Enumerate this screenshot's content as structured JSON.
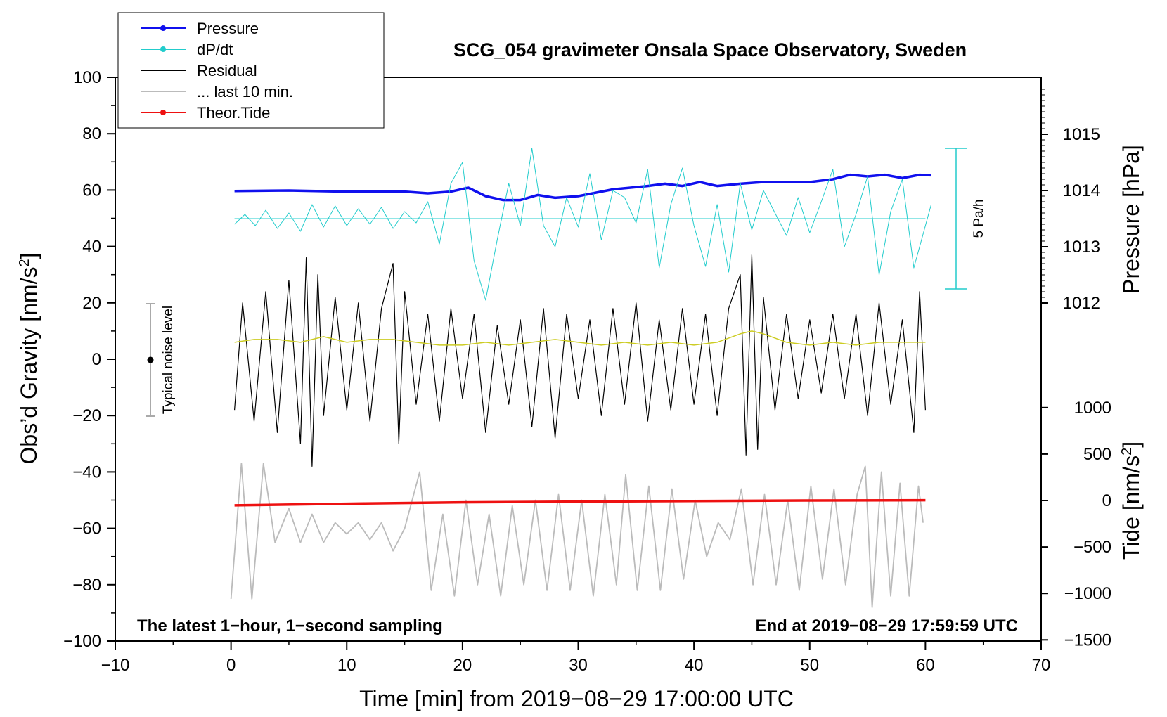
{
  "chart_data": {
    "type": "line",
    "title": "SCG_054 gravimeter Onsala Space Observatory, Sweden",
    "xlabel": "Time [min] from 2019−08−29 17:00:00 UTC",
    "ylabel_main": "Obs’d Gravity [nm/s",
    "ylabel_main_suffix": "]",
    "ylabel_pressure": "Pressure [hPa]",
    "ylabel_tide": "Tide [nm/s",
    "ylabel_tide_suffix": "]",
    "superscript": "2",
    "xlim": [
      -10,
      70
    ],
    "ylim": [
      -100,
      100
    ],
    "x_ticks": [
      "−10",
      "0",
      "10",
      "20",
      "30",
      "40",
      "50",
      "60",
      "70"
    ],
    "y_ticks": [
      "100",
      "80",
      "60",
      "40",
      "20",
      "0",
      "−20",
      "−40",
      "−60",
      "−80",
      "−100"
    ],
    "pressure_ticks": [
      "1015",
      "1014",
      "1013",
      "1012"
    ],
    "tide_ticks": [
      "1000",
      "500",
      "0",
      "−500",
      "−1000",
      "−1500"
    ],
    "annotation_left": "The latest 1−hour, 1−second sampling",
    "annotation_right": "End at 2019−08−29 17:59:59 UTC",
    "noise_label": "Typical noise level",
    "dpdt_scale_label": "5 Pa/h",
    "legend": {
      "placement": "top-left",
      "entries": [
        {
          "label": "Pressure",
          "color": "#1010ee",
          "marker": true
        },
        {
          "label": "dP/dt",
          "color": "#22cccc",
          "marker": true
        },
        {
          "label": "Residual",
          "color": "#000000",
          "marker": false
        },
        {
          "label": "... last 10 min.",
          "color": "#bbbbbb",
          "marker": false
        },
        {
          "label": "Theor.Tide",
          "color": "#ee1111",
          "marker": true
        }
      ]
    },
    "series": [
      {
        "name": "Pressure",
        "axis": "pressure_hPa",
        "color": "#1010ee",
        "x": [
          0.3,
          5,
          10,
          15,
          17,
          19,
          20.5,
          22,
          23.5,
          25,
          26.5,
          28,
          30,
          33,
          36,
          37.5,
          39,
          40.5,
          42,
          44,
          46,
          48,
          50,
          52,
          53.5,
          55,
          56.5,
          58,
          59.5,
          60.5
        ],
        "values": [
          1013.99,
          1014.0,
          1013.98,
          1013.98,
          1013.95,
          1013.98,
          1014.05,
          1013.9,
          1013.83,
          1013.83,
          1013.92,
          1013.87,
          1013.9,
          1014.02,
          1014.08,
          1014.12,
          1014.08,
          1014.15,
          1014.08,
          1014.12,
          1014.15,
          1014.15,
          1014.15,
          1014.2,
          1014.28,
          1014.25,
          1014.28,
          1014.22,
          1014.28,
          1014.27
        ]
      },
      {
        "name": "dP/dt",
        "axis": "pressure_rate",
        "color": "#22cccc",
        "zero_level_pressure_axis": 1013.5,
        "scale_bar_Pa_per_h": 5,
        "x": [
          0.3,
          1.2,
          2.1,
          3.0,
          4.0,
          5.0,
          6.0,
          7.0,
          8.0,
          9.0,
          10.0,
          11.0,
          12.0,
          13.0,
          14.0,
          15.0,
          16.0,
          17.0,
          18.0,
          19.0,
          20.0,
          21.0,
          22.0,
          23.0,
          24.0,
          25.0,
          26.0,
          27.0,
          28.0,
          29.0,
          30.0,
          31.0,
          32.0,
          33.0,
          34.0,
          35.0,
          36.0,
          37.0,
          38.0,
          39.0,
          40.0,
          41.0,
          42.0,
          43.0,
          44.0,
          45.0,
          46.0,
          47.0,
          48.0,
          49.0,
          50.0,
          51.0,
          52.0,
          53.0,
          54.0,
          55.0,
          56.0,
          57.0,
          58.0,
          59.0,
          60.5
        ],
        "values": [
          -0.4,
          0.3,
          -0.5,
          0.6,
          -0.7,
          0.4,
          -0.9,
          1.0,
          -0.6,
          0.9,
          -0.5,
          0.7,
          -0.4,
          0.8,
          -0.7,
          0.5,
          -0.3,
          1.2,
          -1.8,
          2.5,
          4.0,
          -3.0,
          -5.8,
          -1.5,
          2.5,
          -0.5,
          5.0,
          -0.5,
          -2.0,
          1.5,
          -0.6,
          3.2,
          -1.5,
          2.0,
          1.5,
          -0.3,
          3.5,
          -3.5,
          1.0,
          3.6,
          -0.5,
          -3.4,
          1.0,
          -3.8,
          2.5,
          -0.8,
          2.0,
          0.4,
          -1.2,
          1.5,
          -1.0,
          1.2,
          3.5,
          -2.0,
          0.3,
          3.0,
          -4.0,
          0.5,
          2.8,
          -3.5,
          1.0
        ]
      },
      {
        "name": "Residual",
        "axis": "gravity_nm_s2",
        "color": "#000000",
        "x": [
          0.3,
          1.0,
          2.0,
          3.0,
          4.0,
          5.0,
          6.0,
          6.5,
          7.0,
          7.5,
          8.0,
          9.0,
          10.0,
          11.0,
          12.0,
          13.0,
          14.0,
          14.5,
          15.0,
          16.0,
          17.0,
          18.0,
          19.0,
          20.0,
          21.0,
          22.0,
          23.0,
          24.0,
          25.0,
          26.0,
          27.0,
          28.0,
          29.0,
          30.0,
          31.0,
          32.0,
          33.0,
          34.0,
          35.0,
          36.0,
          37.0,
          38.0,
          39.0,
          40.0,
          41.0,
          42.0,
          43.0,
          44.0,
          44.5,
          45.0,
          45.5,
          46.0,
          47.0,
          48.0,
          49.0,
          50.0,
          51.0,
          52.0,
          53.0,
          54.0,
          55.0,
          56.0,
          57.0,
          58.0,
          59.0,
          59.5,
          60.0
        ],
        "values": [
          -18,
          20,
          -22,
          24,
          -26,
          28,
          -30,
          36,
          -38,
          30,
          -20,
          22,
          -18,
          20,
          -22,
          18,
          34,
          -30,
          24,
          -16,
          16,
          -22,
          18,
          -14,
          16,
          -26,
          12,
          -16,
          14,
          -24,
          18,
          -28,
          16,
          -14,
          14,
          -20,
          18,
          -16,
          20,
          -22,
          14,
          -18,
          18,
          -16,
          16,
          -20,
          18,
          30,
          -34,
          37,
          -32,
          22,
          -18,
          16,
          -14,
          14,
          -12,
          16,
          -14,
          16,
          -20,
          20,
          -16,
          14,
          -26,
          24,
          -18
        ]
      },
      {
        "name": "Residual (filtered)",
        "axis": "gravity_nm_s2",
        "color": "#cccc22",
        "x": [
          0.3,
          2,
          4,
          6,
          8,
          10,
          12,
          14,
          16,
          18,
          20,
          22,
          24,
          26,
          28,
          30,
          32,
          34,
          36,
          38,
          40,
          42,
          44,
          45,
          46,
          48,
          50,
          52,
          54,
          56,
          58,
          60
        ],
        "values": [
          6,
          7,
          7,
          6,
          8,
          6,
          7,
          7,
          6,
          5,
          5,
          6,
          5,
          6,
          7,
          6,
          5,
          6,
          5,
          6,
          5,
          6,
          9,
          10,
          9,
          6,
          5,
          6,
          5,
          6,
          6,
          6
        ]
      },
      {
        "name": "... last 10 min.",
        "axis": "gravity_nm_s2",
        "color": "#bbbbbb",
        "x": [
          0.0,
          0.9,
          1.8,
          2.8,
          3.8,
          5,
          6,
          7,
          8,
          9,
          10,
          11,
          12,
          13,
          14,
          15,
          16.3,
          17.3,
          18.3,
          19.3,
          20.3,
          21.3,
          22.3,
          23.3,
          24.3,
          25.3,
          26.3,
          27.3,
          28.3,
          29.3,
          30.3,
          31.3,
          32.3,
          33.3,
          34.1,
          35.1,
          36.1,
          37.1,
          38.1,
          39.1,
          40.1,
          41.1,
          42.1,
          43.1,
          44.1,
          45.1,
          46.1,
          47.1,
          48.1,
          49.1,
          50.1,
          51.1,
          52.1,
          53.1,
          54.1,
          54.8,
          55.4,
          56.2,
          57.0,
          57.8,
          58.6,
          59.4,
          59.8
        ],
        "values": [
          -85,
          -37,
          -85,
          -37,
          -65,
          -53,
          -65,
          -55,
          -65,
          -58,
          -62,
          -58,
          -64,
          -58,
          -68,
          -60,
          -40,
          -82,
          -55,
          -84,
          -50,
          -80,
          -55,
          -84,
          -52,
          -80,
          -50,
          -82,
          -48,
          -82,
          -50,
          -84,
          -48,
          -80,
          -41,
          -82,
          -45,
          -82,
          -46,
          -78,
          -50,
          -70,
          -58,
          -64,
          -46,
          -80,
          -48,
          -80,
          -50,
          -82,
          -45,
          -78,
          -46,
          -80,
          -48,
          -38,
          -88,
          -40,
          -84,
          -44,
          -84,
          -45,
          -58
        ]
      },
      {
        "name": "Theor.Tide",
        "axis": "tide_nm_s2",
        "color": "#ee1111",
        "x": [
          0.3,
          10,
          20,
          30,
          40,
          50,
          60
        ],
        "values": [
          -52,
          -35,
          -20,
          -12,
          -5,
          0,
          3
        ]
      }
    ]
  }
}
